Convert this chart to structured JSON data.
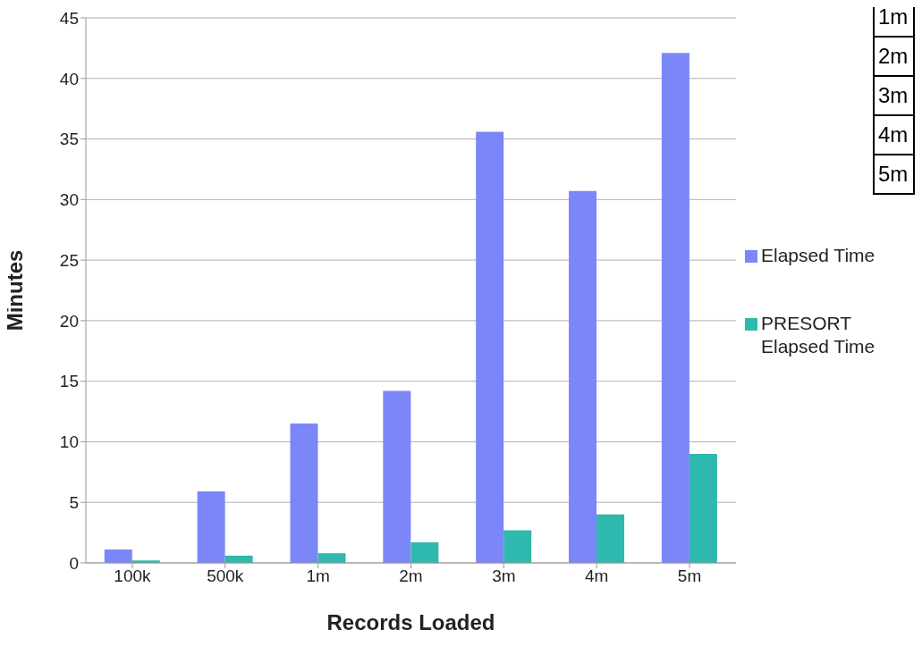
{
  "chart_data": {
    "type": "bar",
    "xlabel": "Records Loaded",
    "ylabel": "Minutes",
    "categories": [
      "100k",
      "500k",
      "1m",
      "2m",
      "3m",
      "4m",
      "5m"
    ],
    "series": [
      {
        "name": "Elapsed Time",
        "color": "#7b86f8",
        "values": [
          1.1,
          5.9,
          11.5,
          14.2,
          35.6,
          30.7,
          42.1
        ]
      },
      {
        "name": "PRESORT Elapsed Time",
        "color": "#2fb8ad",
        "values": [
          0.2,
          0.6,
          0.8,
          1.7,
          2.7,
          4.0,
          9.0
        ]
      }
    ],
    "ylim": [
      0,
      45
    ],
    "yticks": [
      0,
      5,
      10,
      15,
      20,
      25,
      30,
      35,
      40,
      45
    ],
    "grid": "y",
    "legend": "right",
    "annotations": [
      "1m",
      "2m",
      "3m",
      "4m",
      "5m"
    ]
  }
}
